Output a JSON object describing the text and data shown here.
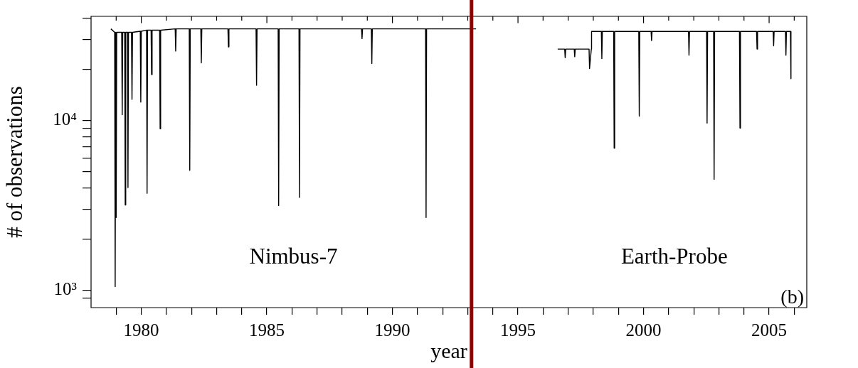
{
  "chart_data": {
    "type": "line",
    "xlabel": "year",
    "ylabel": "# of observations",
    "log": "y",
    "legend": false,
    "grid": false,
    "marker": "none",
    "line_style": "solid",
    "xlim": [
      1978,
      2006.5
    ],
    "xticks": [
      {
        "value": 1979,
        "label": null
      },
      {
        "value": 1980,
        "label": "1980"
      },
      {
        "value": 1981,
        "label": null
      },
      {
        "value": 1982,
        "label": null
      },
      {
        "value": 1983,
        "label": null
      },
      {
        "value": 1984,
        "label": null
      },
      {
        "value": 1985,
        "label": "1985"
      },
      {
        "value": 1986,
        "label": null
      },
      {
        "value": 1987,
        "label": null
      },
      {
        "value": 1988,
        "label": null
      },
      {
        "value": 1989,
        "label": null
      },
      {
        "value": 1990,
        "label": "1990"
      },
      {
        "value": 1991,
        "label": null
      },
      {
        "value": 1992,
        "label": null
      },
      {
        "value": 1993,
        "label": null
      },
      {
        "value": 1994,
        "label": null
      },
      {
        "value": 1995,
        "label": "1995"
      },
      {
        "value": 1996,
        "label": null
      },
      {
        "value": 1997,
        "label": null
      },
      {
        "value": 1998,
        "label": null
      },
      {
        "value": 1999,
        "label": null
      },
      {
        "value": 2000,
        "label": "2000"
      },
      {
        "value": 2001,
        "label": null
      },
      {
        "value": 2002,
        "label": null
      },
      {
        "value": 2003,
        "label": null
      },
      {
        "value": 2004,
        "label": null
      },
      {
        "value": 2005,
        "label": "2005"
      },
      {
        "value": 2006,
        "label": null
      }
    ],
    "ylim": [
      790,
      41000
    ],
    "yticks": [
      {
        "value": 900,
        "label": null
      },
      {
        "value": 1000,
        "label": "10³"
      },
      {
        "value": 2000,
        "label": null
      },
      {
        "value": 3000,
        "label": null
      },
      {
        "value": 4000,
        "label": null
      },
      {
        "value": 5000,
        "label": null
      },
      {
        "value": 6000,
        "label": null
      },
      {
        "value": 7000,
        "label": null
      },
      {
        "value": 8000,
        "label": null
      },
      {
        "value": 9000,
        "label": null
      },
      {
        "value": 10000,
        "label": "10⁴"
      },
      {
        "value": 20000,
        "label": null
      },
      {
        "value": 30000,
        "label": null
      },
      {
        "value": 40000,
        "label": null
      }
    ],
    "series": [
      {
        "name": "Nimbus-7",
        "color": "#000000",
        "x": [
          1978.79,
          1978.94,
          1978.96,
          1978.98,
          1979.0,
          1979.02,
          1979.22,
          1979.24,
          1979.26,
          1979.34,
          1979.36,
          1979.38,
          1979.45,
          1979.47,
          1979.49,
          1979.61,
          1979.63,
          1979.65,
          1979.96,
          1979.98,
          1980.0,
          1980.21,
          1980.23,
          1980.25,
          1980.39,
          1980.41,
          1980.43,
          1980.73,
          1980.75,
          1980.77,
          1981.35,
          1981.37,
          1981.39,
          1981.91,
          1981.93,
          1981.95,
          1982.37,
          1982.39,
          1982.41,
          1983.45,
          1983.47,
          1983.49,
          1984.57,
          1984.59,
          1984.61,
          1985.45,
          1985.47,
          1985.49,
          1986.28,
          1986.3,
          1986.32,
          1988.77,
          1988.79,
          1988.81,
          1989.16,
          1989.18,
          1989.2,
          1991.32,
          1991.34,
          1991.36,
          1993.33
        ],
        "values": [
          34600,
          33000,
          1050,
          33000,
          2680,
          33000,
          33000,
          10800,
          33000,
          33000,
          3180,
          33000,
          33000,
          4020,
          33000,
          33000,
          13300,
          33000,
          33500,
          12800,
          33500,
          34000,
          3720,
          34000,
          34000,
          18600,
          34000,
          34000,
          8930,
          34000,
          34600,
          25600,
          34600,
          34600,
          5080,
          34600,
          34600,
          21800,
          34600,
          34600,
          27100,
          34600,
          34600,
          16100,
          34600,
          34600,
          3150,
          34600,
          34600,
          3520,
          34600,
          34600,
          30300,
          34600,
          34600,
          21600,
          34600,
          34600,
          2680,
          34600,
          34600
        ]
      },
      {
        "name": "Earth-Probe",
        "color": "#000000",
        "x": [
          1996.58,
          1996.86,
          1996.88,
          1996.9,
          1997.24,
          1997.26,
          1997.28,
          1997.83,
          1997.85,
          1997.92,
          1997.93,
          1998.32,
          1998.34,
          1998.36,
          1998.81,
          1998.83,
          1998.85,
          1999.81,
          1999.83,
          1999.85,
          2000.3,
          2000.32,
          2000.34,
          2001.79,
          2001.81,
          2001.83,
          2002.51,
          2002.53,
          2002.55,
          2002.79,
          2002.81,
          2002.83,
          2003.82,
          2003.84,
          2003.86,
          2004.5,
          2004.52,
          2004.54,
          2005.16,
          2005.18,
          2005.2,
          2005.65,
          2005.67,
          2005.69,
          2005.85,
          2005.87
        ],
        "values": [
          26300,
          26300,
          23400,
          26300,
          26300,
          23700,
          26300,
          26300,
          20200,
          26300,
          33400,
          33400,
          23100,
          33400,
          33400,
          6870,
          33400,
          33400,
          10600,
          33400,
          33400,
          29500,
          33400,
          33400,
          24200,
          33400,
          33400,
          9640,
          33400,
          33400,
          4500,
          33400,
          33400,
          9020,
          33400,
          33400,
          26300,
          33400,
          33400,
          27500,
          33400,
          33400,
          24200,
          33400,
          33400,
          17600
        ]
      }
    ],
    "ref_lines": [
      {
        "axis": "x",
        "value": 1993.15,
        "color": "#8b0000",
        "line_style": "solid"
      }
    ],
    "annotations": [
      "(b)"
    ]
  }
}
